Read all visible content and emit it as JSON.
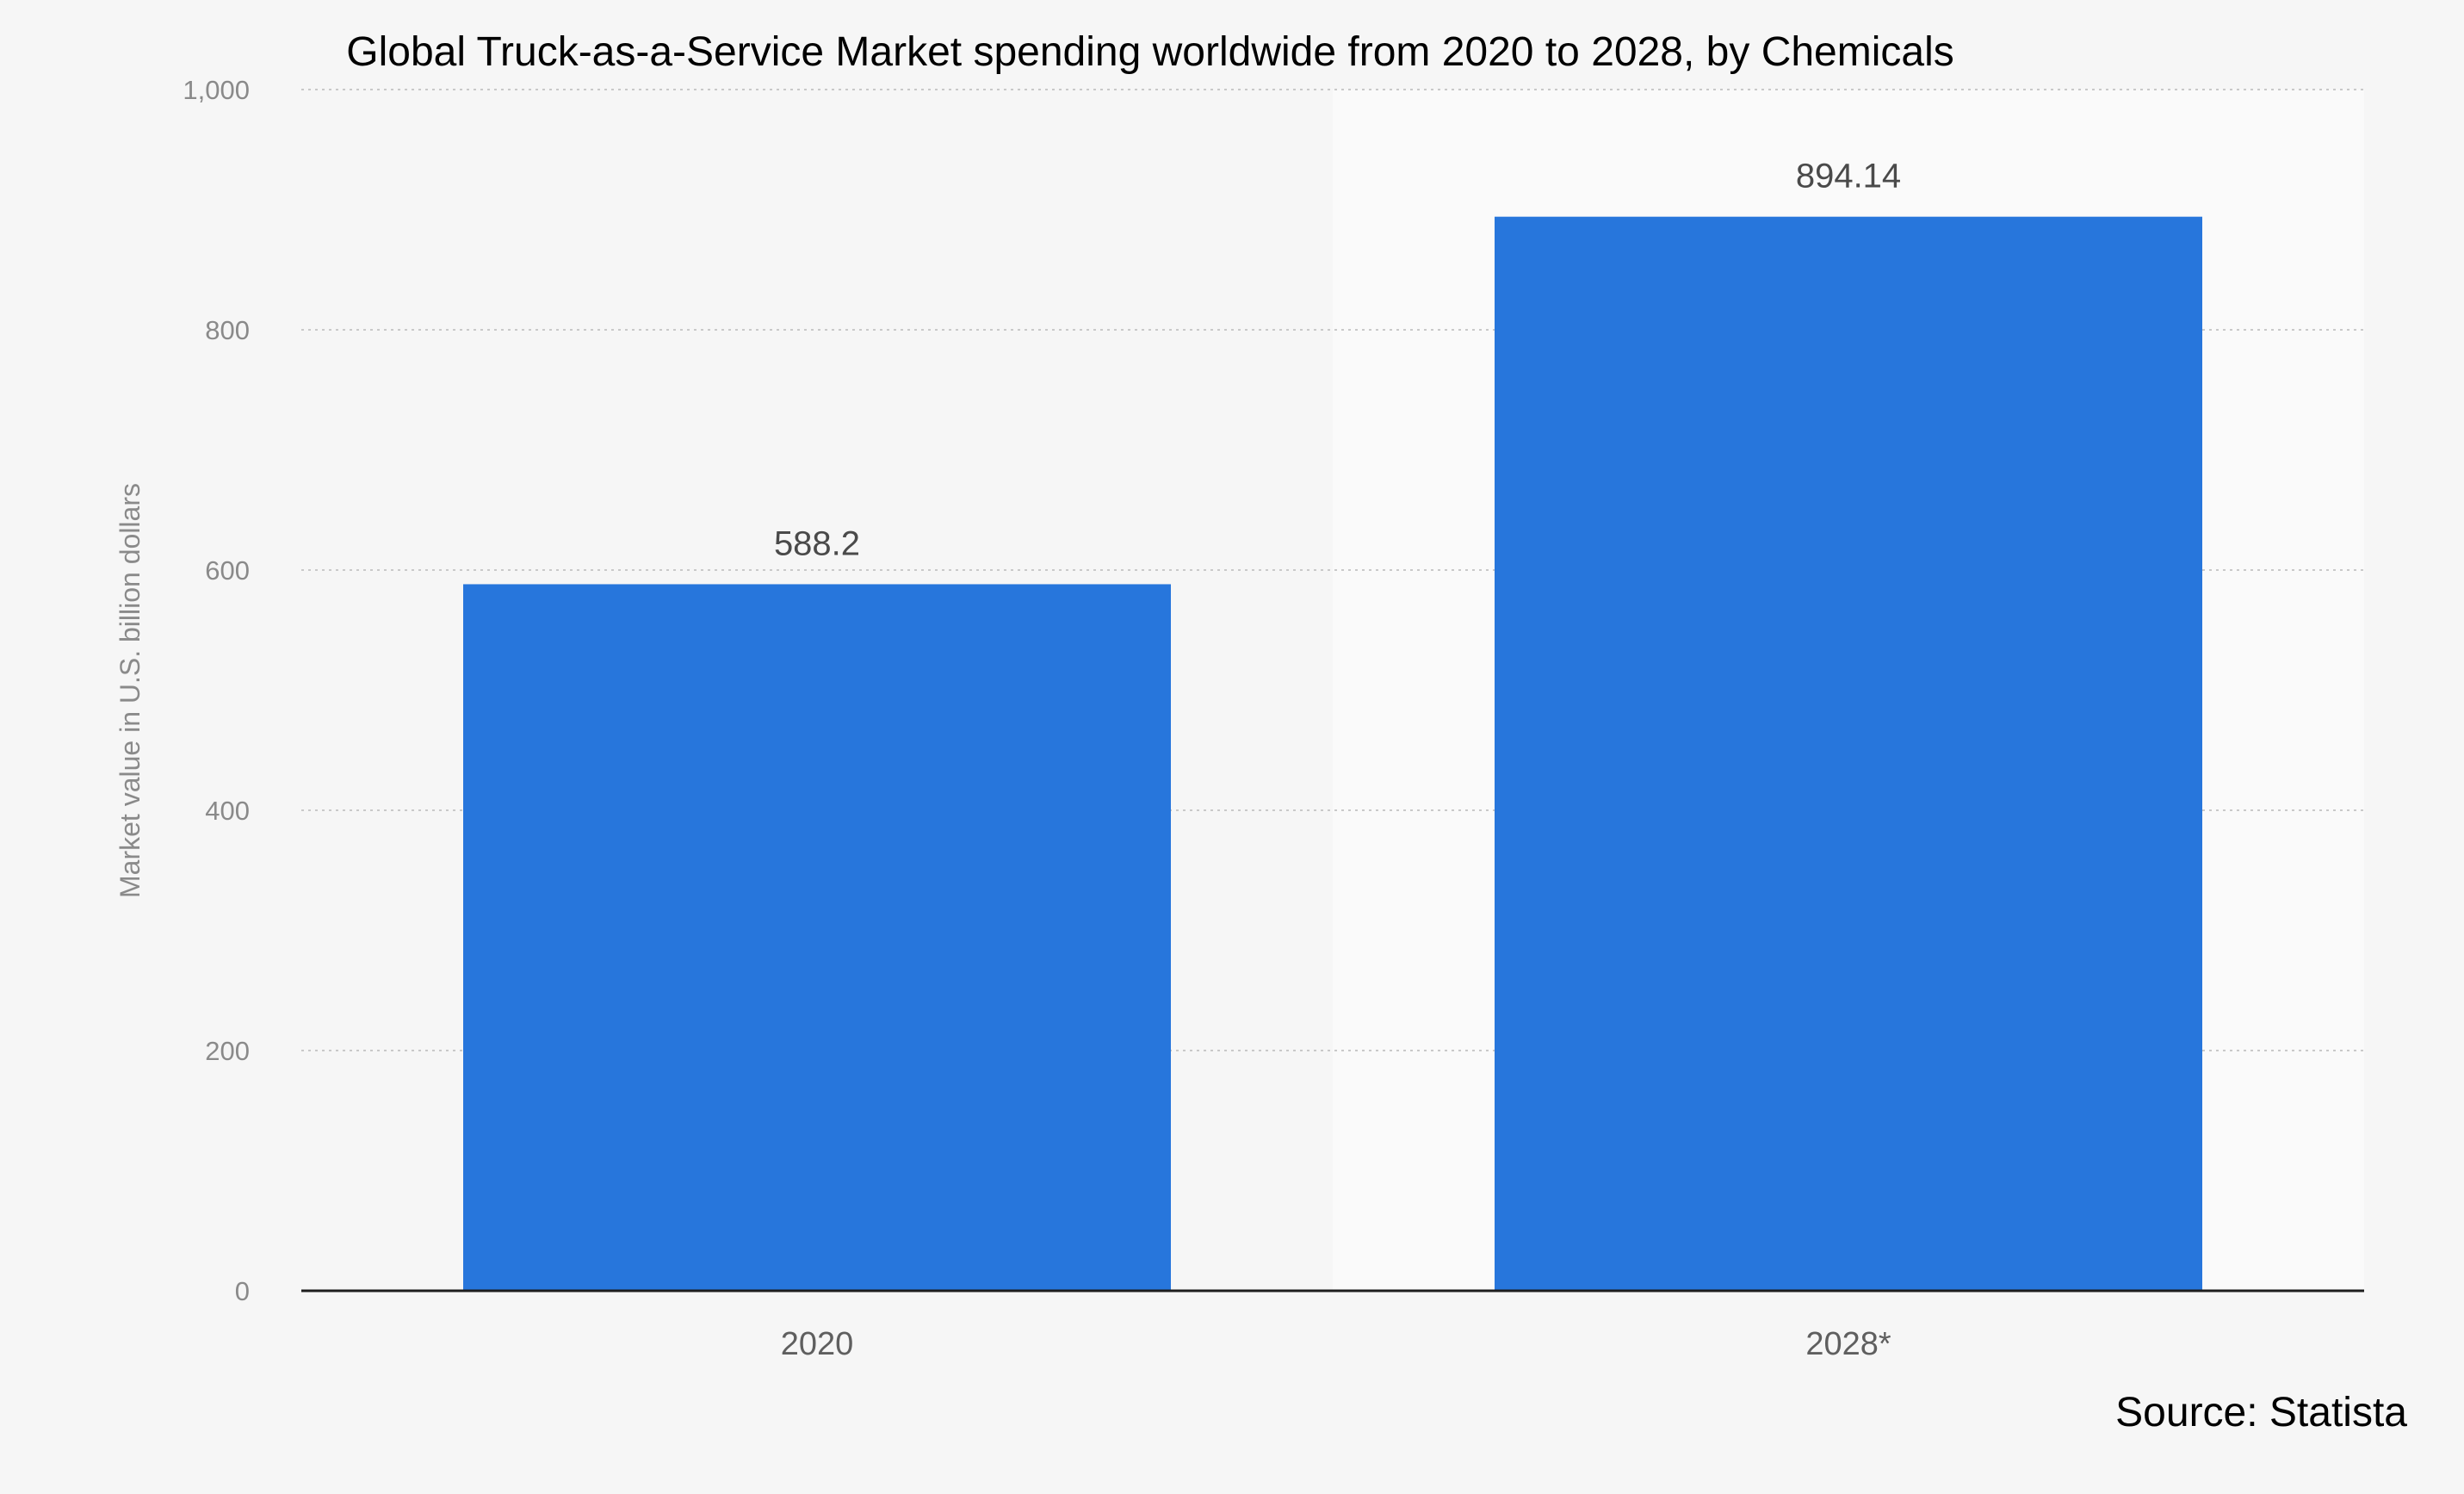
{
  "chart_data": {
    "type": "bar",
    "title": "Global Truck-as-a-Service Market spending worldwide from 2020 to 2028, by Chemicals",
    "ylabel": "Market value in U.S. billion dollars",
    "xlabel": "",
    "categories": [
      "2020",
      "2028*"
    ],
    "values": [
      588.2,
      894.14
    ],
    "value_labels": [
      "588.2",
      "894.14"
    ],
    "ylim": [
      0,
      1000
    ],
    "yticks": [
      0,
      200,
      400,
      600,
      800,
      1000
    ],
    "ytick_labels": [
      "0",
      "200",
      "400",
      "600",
      "800",
      "1,000"
    ],
    "grid": true,
    "bar_color": "#2776dc",
    "forecast_band_color": "#fafafa",
    "forecast_from_index": 1
  },
  "source": "Source: Statista"
}
